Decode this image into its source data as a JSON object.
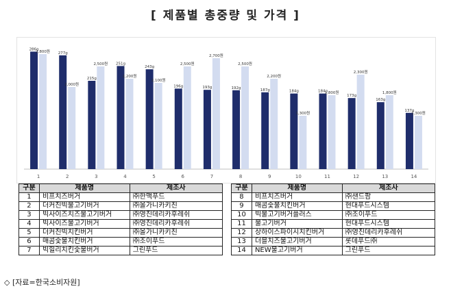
{
  "title": "[ 제품별 총중량 및 가격 ]",
  "source": "◇ [자료=한국소비자원]",
  "colors": {
    "weight": "#1f2d6b",
    "price": "#d3dcf0"
  },
  "chart_data": {
    "type": "bar",
    "categories": [
      "1",
      "2",
      "3",
      "4",
      "5",
      "6",
      "7",
      "8",
      "9",
      "10",
      "11",
      "12",
      "13",
      "14"
    ],
    "series": [
      {
        "values": [
          286,
          277,
          215,
          251,
          243,
          196,
          193,
          192,
          187,
          184,
          184,
          173,
          163,
          137
        ],
        "labels": [
          "286g",
          "277g",
          "215g",
          "251g",
          "243g",
          "196g",
          "193g",
          "192g",
          "187g",
          "184g",
          "184g",
          "173g",
          "163g",
          "137g"
        ]
      },
      {
        "values": [
          2800,
          2000,
          2500,
          2200,
          2100,
          2500,
          2700,
          2500,
          2200,
          1300,
          1800,
          2300,
          1800,
          1300
        ],
        "labels": [
          "2,800원",
          "2,000원",
          "2,500원",
          "2,200원",
          "2,100원",
          "2,500원",
          "2,700원",
          "2,500원",
          "2,200원",
          "1,300원",
          "1,800원",
          "2,300원",
          "1,800원",
          "1,300원"
        ]
      }
    ],
    "legend": "none",
    "grid": false
  },
  "table": {
    "headers": [
      "구분",
      "제품명",
      "제조사"
    ],
    "left_rows": [
      [
        "1",
        "비프치즈버거",
        "㈜한맥푸드"
      ],
      [
        "2",
        "더커진빅불고기버거",
        "㈜올가니카키친"
      ],
      [
        "3",
        "빅사이즈치즈불고기버거",
        "㈜영진데리카후레쉬"
      ],
      [
        "4",
        "빅사이즈불고기버거",
        "㈜영진데리카후레쉬"
      ],
      [
        "5",
        "더커진빅치킨버거",
        "㈜올가니카키친"
      ],
      [
        "6",
        "매콤숯불치킨버거",
        "㈜조이푸드"
      ],
      [
        "7",
        "빅힐리치킨숯불버거",
        "그린푸드"
      ]
    ],
    "right_rows": [
      [
        "8",
        "비프치즈버거",
        "㈜샌드팜"
      ],
      [
        "9",
        "매콤숯불치킨버거",
        "현대푸드시스템"
      ],
      [
        "10",
        "빅불고기버거플러스",
        "㈜조이푸드"
      ],
      [
        "11",
        "불고기버거",
        "현대푸드시스템"
      ],
      [
        "12",
        "상하이스파이시치킨버거",
        "㈜영진데리카후레쉬"
      ],
      [
        "13",
        "더블치즈불고기버거",
        "롯데푸드㈜"
      ],
      [
        "14",
        "NEW불고기버거",
        "그린푸드"
      ]
    ]
  }
}
